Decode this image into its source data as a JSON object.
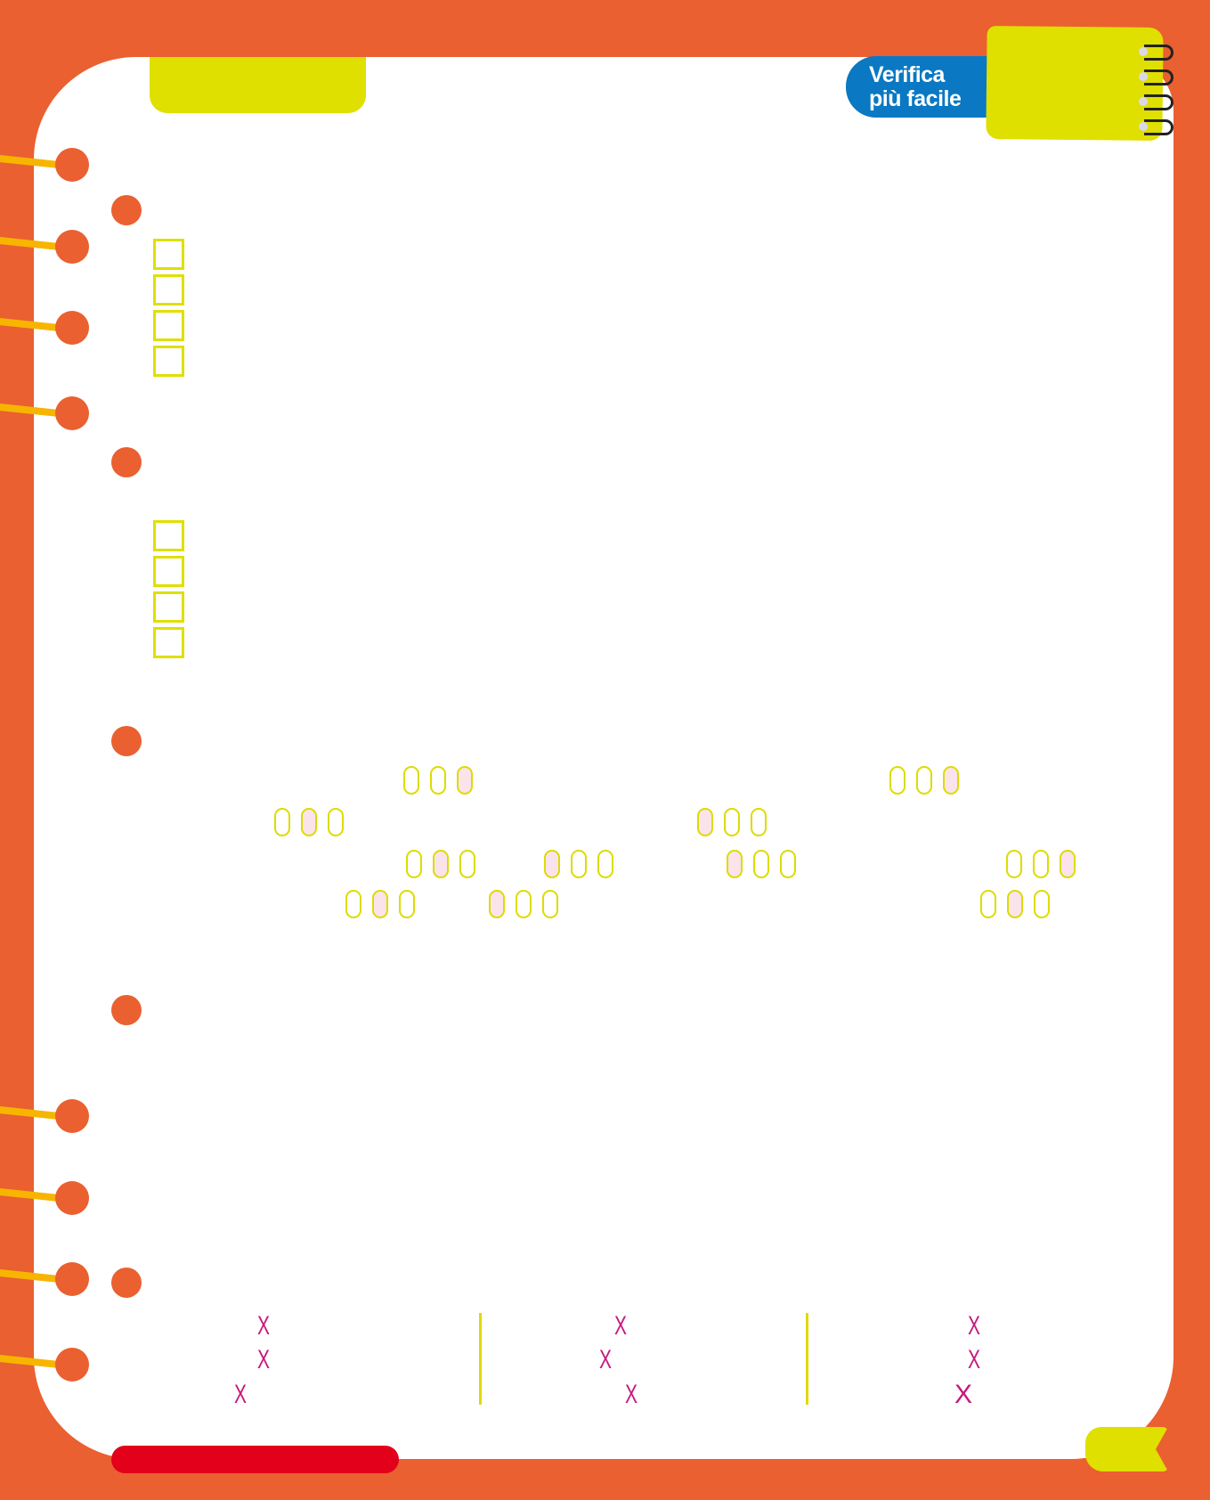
{
  "header": {
    "badge_line1": "Verifica",
    "badge_line2": "più facile"
  },
  "colors": {
    "frame": "#ea6030",
    "accent_yellow": "#dfdf00",
    "badge_blue": "#0a78c2",
    "selected_fill": "#fbe3ec",
    "mark_magenta": "#c8187e",
    "bar_red": "#e2001a"
  },
  "answer_groups": [
    {
      "options": 3,
      "selected": 3
    },
    {
      "options": 3,
      "selected": 3
    },
    {
      "options": 3,
      "selected": 2
    },
    {
      "options": 3,
      "selected": 1
    },
    {
      "options": 3,
      "selected": 2
    },
    {
      "options": 3,
      "selected": 1
    },
    {
      "options": 3,
      "selected": 1
    },
    {
      "options": 3,
      "selected": 3
    },
    {
      "options": 3,
      "selected": 2
    },
    {
      "options": 3,
      "selected": 1
    },
    {
      "options": 3,
      "selected": 2
    }
  ],
  "marks": {
    "icon": "cross-mark-icon",
    "glyph": "X",
    "columns": 3,
    "per_column": 3
  },
  "checkbox_groups": [
    4,
    4
  ]
}
